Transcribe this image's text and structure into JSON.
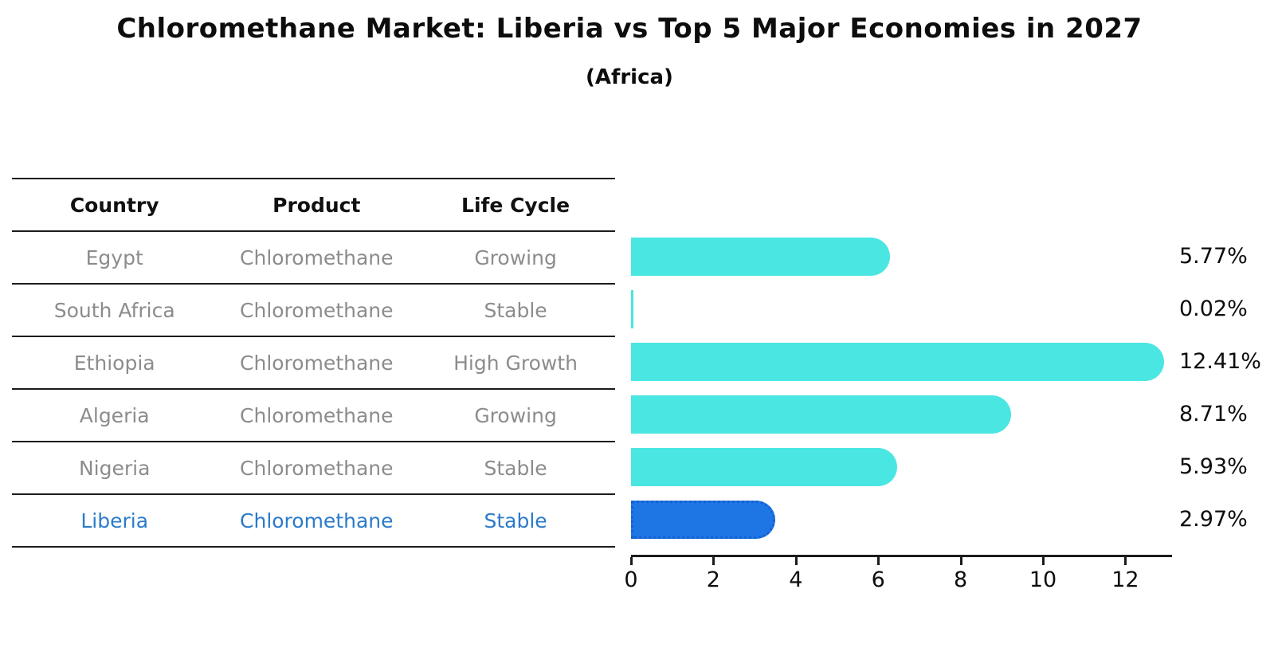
{
  "title": "Chloromethane Market: Liberia vs Top 5 Major Economies in 2027",
  "subtitle": "(Africa)",
  "table": {
    "headers": [
      "Country",
      "Product",
      "Life Cycle"
    ],
    "rows": [
      {
        "country": "Egypt",
        "product": "Chloromethane",
        "life_cycle": "Growing",
        "highlighted": false
      },
      {
        "country": "South Africa",
        "product": "Chloromethane",
        "life_cycle": "Stable",
        "highlighted": false
      },
      {
        "country": "Ethiopia",
        "product": "Chloromethane",
        "life_cycle": "High Growth",
        "highlighted": false
      },
      {
        "country": "Algeria",
        "product": "Chloromethane",
        "life_cycle": "Growing",
        "highlighted": false
      },
      {
        "country": "Nigeria",
        "product": "Chloromethane",
        "life_cycle": "Stable",
        "highlighted": false
      },
      {
        "country": "Liberia",
        "product": "Chloromethane",
        "life_cycle": "Stable",
        "highlighted": true
      }
    ]
  },
  "chart_data": {
    "type": "bar",
    "orientation": "horizontal",
    "title": "Chloromethane Market: Liberia vs Top 5 Major Economies in 2027",
    "subtitle": "(Africa)",
    "categories": [
      "Egypt",
      "South Africa",
      "Ethiopia",
      "Algeria",
      "Nigeria",
      "Liberia"
    ],
    "values": [
      5.77,
      0.02,
      12.41,
      8.71,
      5.93,
      2.97
    ],
    "labels": [
      "5.77%",
      "0.02%",
      "12.41%",
      "8.71%",
      "5.93%",
      "2.97%"
    ],
    "xlabel": "",
    "ylabel": "",
    "xlim": [
      0,
      13.1
    ],
    "x_ticks": [
      0,
      2,
      4,
      6,
      8,
      10,
      12
    ],
    "grid": false,
    "legend": "none",
    "bar_color": "#4ae6e2",
    "highlight_color": "#1e76e4",
    "highlight_index": 5,
    "value_label_color": "#0d0d0d"
  }
}
